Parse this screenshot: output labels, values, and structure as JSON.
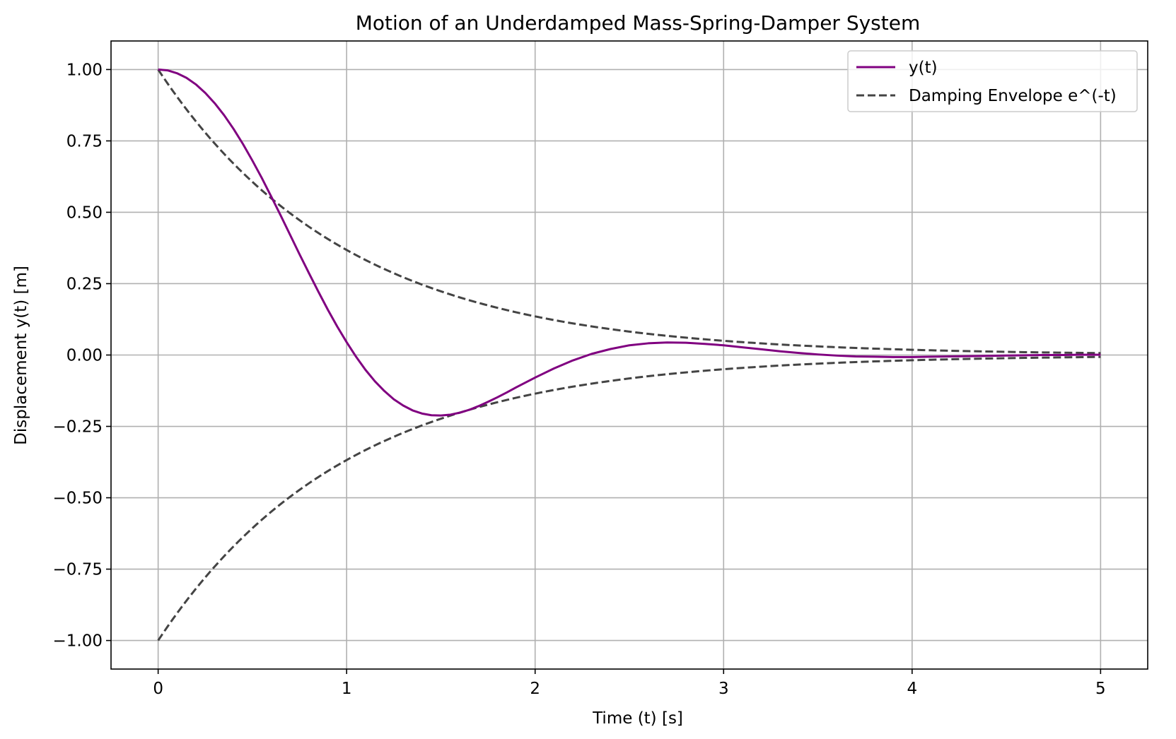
{
  "chart_data": {
    "type": "line",
    "title": "Motion of an Underdamped Mass-Spring-Damper System",
    "xlabel": "Time (t) [s]",
    "ylabel": "Displacement y(t) [m]",
    "xlim": [
      -0.25,
      5.25
    ],
    "ylim": [
      -1.1,
      1.1
    ],
    "x_ticks": [
      0,
      1,
      2,
      3,
      4,
      5
    ],
    "x_tick_labels": [
      "0",
      "1",
      "2",
      "3",
      "4",
      "5"
    ],
    "y_ticks": [
      1.0,
      0.75,
      0.5,
      0.25,
      0.0,
      -0.25,
      -0.5,
      -0.75,
      -1.0
    ],
    "y_tick_labels": [
      "1.00",
      "0.75",
      "0.50",
      "0.25",
      "0.00",
      "−0.25",
      "−0.50",
      "−0.75",
      "−1.00"
    ],
    "grid": true,
    "legend_position": "top-right",
    "series": [
      {
        "name": "y(t)",
        "color": "#800080",
        "style": "solid",
        "x": [
          0,
          0.05,
          0.1,
          0.15,
          0.2,
          0.25,
          0.3,
          0.35,
          0.4,
          0.45,
          0.5,
          0.55,
          0.6,
          0.65,
          0.7,
          0.75,
          0.8,
          0.85,
          0.9,
          0.95,
          1.0,
          1.05,
          1.1,
          1.15,
          1.2,
          1.25,
          1.3,
          1.35,
          1.4,
          1.45,
          1.5,
          1.55,
          1.6,
          1.65,
          1.7,
          1.75,
          1.8,
          1.85,
          1.9,
          1.95,
          2.0,
          2.1,
          2.2,
          2.3,
          2.4,
          2.5,
          2.6,
          2.7,
          2.8,
          2.9,
          3.0,
          3.1,
          3.2,
          3.3,
          3.4,
          3.5,
          3.6,
          3.7,
          3.8,
          3.9,
          4.0,
          4.1,
          4.2,
          4.3,
          4.4,
          4.5,
          4.6,
          4.7,
          4.8,
          4.9,
          5.0
        ],
        "y": [
          1.0,
          0.997,
          0.987,
          0.971,
          0.948,
          0.918,
          0.882,
          0.84,
          0.792,
          0.739,
          0.681,
          0.62,
          0.555,
          0.489,
          0.421,
          0.353,
          0.287,
          0.222,
          0.159,
          0.1,
          0.045,
          -0.006,
          -0.052,
          -0.092,
          -0.126,
          -0.155,
          -0.177,
          -0.194,
          -0.205,
          -0.211,
          -0.212,
          -0.209,
          -0.202,
          -0.192,
          -0.179,
          -0.164,
          -0.148,
          -0.131,
          -0.113,
          -0.096,
          -0.079,
          -0.047,
          -0.019,
          0.004,
          0.021,
          0.034,
          0.041,
          0.044,
          0.043,
          0.039,
          0.034,
          0.027,
          0.02,
          0.013,
          0.007,
          0.002,
          -0.002,
          -0.005,
          -0.006,
          -0.007,
          -0.007,
          -0.006,
          -0.005,
          -0.004,
          -0.003,
          -0.002,
          -0.001,
          0.0,
          0.0,
          0.001,
          0.001
        ]
      },
      {
        "name": "Damping Envelope e^(-t)",
        "color": "#444444",
        "style": "dashed",
        "function": "exp(-t)",
        "x_range": [
          0,
          5
        ],
        "mirrored": true
      }
    ]
  }
}
